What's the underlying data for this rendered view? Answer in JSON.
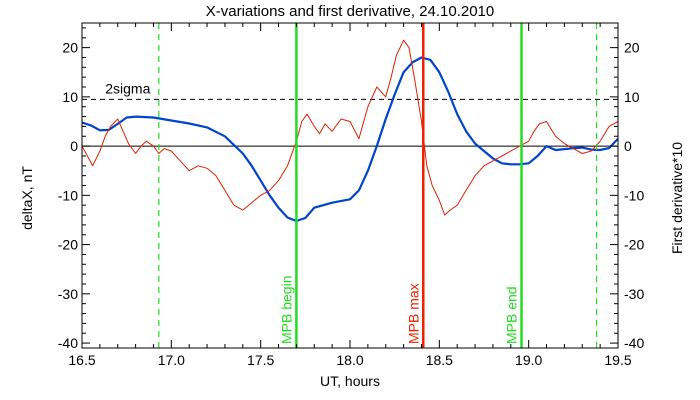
{
  "chart_data": {
    "type": "line",
    "title": "X-variations and first derivative, 24.10.2010",
    "xlabel": "UT, hours",
    "ylabel_left": "deltaX, nT",
    "ylabel_right": "First derivative*10",
    "xlim": [
      16.5,
      19.5
    ],
    "ylim": [
      -41,
      25
    ],
    "x_ticks": [
      16.5,
      17.0,
      17.5,
      18.0,
      18.5,
      19.0,
      19.5
    ],
    "x_tick_labels": [
      "16.5",
      "17.0",
      "17.5",
      "18.0",
      "18.5",
      "19.0",
      "19.5"
    ],
    "y_ticks": [
      -40,
      -30,
      -20,
      -10,
      0,
      10,
      20
    ],
    "y_tick_labels_left": [
      "-40",
      "-30",
      "-20",
      "-10",
      "0",
      "10",
      "20"
    ],
    "y_tick_labels_right": [
      "-40",
      "-30",
      "-20",
      "-10",
      "0",
      "10",
      "20"
    ],
    "grid": false,
    "colors": {
      "deltaX": "#0044cc",
      "derivative": "#dd2200",
      "mpb_green": "#22dd22",
      "mpb_max": "#ee2200",
      "sigma": "#000000",
      "zero": "#000000",
      "ylabel_left": "#0044cc",
      "ylabel_right": "#dd2200"
    },
    "reference_lines": {
      "zero": 0,
      "sigma_level": 9.5,
      "sigma_label": "2sigma"
    },
    "vertical_markers": [
      {
        "x": 17.7,
        "label": "MPB begin",
        "color": "#22dd22",
        "style": "solid"
      },
      {
        "x": 18.41,
        "label": "MPB max",
        "color": "#ee2200",
        "style": "solid"
      },
      {
        "x": 18.96,
        "label": "MPB end",
        "color": "#22dd22",
        "style": "solid"
      },
      {
        "x": 16.93,
        "label": "",
        "color": "#22dd22",
        "style": "dashed"
      },
      {
        "x": 19.38,
        "label": "",
        "color": "#22dd22",
        "style": "dashed"
      }
    ],
    "series": [
      {
        "name": "deltaX",
        "color": "#0044cc",
        "axis": "left",
        "x": [
          16.5,
          16.55,
          16.6,
          16.65,
          16.7,
          16.75,
          16.8,
          16.9,
          17.0,
          17.1,
          17.2,
          17.3,
          17.4,
          17.45,
          17.5,
          17.55,
          17.6,
          17.65,
          17.7,
          17.75,
          17.8,
          17.85,
          17.9,
          18.0,
          18.05,
          18.1,
          18.15,
          18.2,
          18.25,
          18.3,
          18.35,
          18.4,
          18.45,
          18.5,
          18.55,
          18.6,
          18.65,
          18.7,
          18.75,
          18.8,
          18.85,
          18.9,
          18.95,
          19.0,
          19.05,
          19.1,
          19.15,
          19.2,
          19.25,
          19.3,
          19.35,
          19.4,
          19.45,
          19.5
        ],
        "y": [
          4.8,
          4.2,
          3.2,
          3.3,
          4.5,
          5.8,
          6.0,
          5.8,
          5.2,
          4.6,
          3.8,
          2.0,
          -1.5,
          -4.0,
          -7.0,
          -10.0,
          -12.5,
          -14.5,
          -15.2,
          -14.6,
          -12.5,
          -12.0,
          -11.5,
          -10.8,
          -9.0,
          -5.0,
          0.0,
          5.5,
          10.5,
          15.0,
          17.0,
          18.0,
          17.5,
          15.0,
          11.0,
          6.5,
          3.0,
          0.5,
          -1.0,
          -2.5,
          -3.5,
          -3.7,
          -3.7,
          -3.5,
          -2.0,
          0.0,
          -0.8,
          -0.6,
          -0.4,
          -0.3,
          -0.7,
          -0.8,
          -0.4,
          1.5
        ]
      },
      {
        "name": "derivative",
        "color": "#dd2200",
        "axis": "right",
        "x": [
          16.5,
          16.53,
          16.56,
          16.6,
          16.63,
          16.66,
          16.7,
          16.73,
          16.76,
          16.8,
          16.83,
          16.86,
          16.9,
          16.93,
          16.96,
          17.0,
          17.05,
          17.1,
          17.15,
          17.2,
          17.25,
          17.3,
          17.35,
          17.4,
          17.45,
          17.5,
          17.55,
          17.6,
          17.65,
          17.7,
          17.73,
          17.76,
          17.8,
          17.83,
          17.86,
          17.9,
          17.95,
          18.0,
          18.05,
          18.1,
          18.15,
          18.2,
          18.23,
          18.26,
          18.3,
          18.33,
          18.36,
          18.4,
          18.43,
          18.46,
          18.5,
          18.53,
          18.56,
          18.6,
          18.65,
          18.7,
          18.75,
          18.8,
          18.85,
          18.9,
          18.95,
          19.0,
          19.03,
          19.06,
          19.1,
          19.15,
          19.2,
          19.25,
          19.3,
          19.35,
          19.4,
          19.45,
          19.5
        ],
        "y": [
          0.0,
          -2.0,
          -4.0,
          -1.0,
          2.0,
          4.0,
          5.5,
          3.0,
          0.5,
          -1.5,
          0.0,
          1.0,
          0.0,
          -1.5,
          -0.5,
          -1.0,
          -3.0,
          -5.0,
          -4.0,
          -4.5,
          -6.0,
          -9.0,
          -12.0,
          -13.0,
          -11.5,
          -10.0,
          -9.0,
          -7.0,
          -4.0,
          1.0,
          5.0,
          6.5,
          4.0,
          2.5,
          4.5,
          3.0,
          5.5,
          5.0,
          1.5,
          8.0,
          12.0,
          10.0,
          14.0,
          18.5,
          21.5,
          20.0,
          14.0,
          5.0,
          -4.0,
          -8.0,
          -11.0,
          -14.0,
          -13.0,
          -12.0,
          -9.0,
          -6.0,
          -4.0,
          -3.0,
          -2.0,
          -1.0,
          0.0,
          1.0,
          3.0,
          4.5,
          5.0,
          2.0,
          0.5,
          -0.5,
          -1.5,
          -1.0,
          1.0,
          4.0,
          5.0
        ]
      }
    ]
  }
}
